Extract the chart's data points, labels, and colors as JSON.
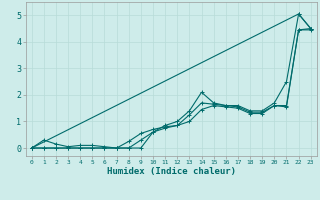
{
  "xlabel": "Humidex (Indice chaleur)",
  "background_color": "#ceecea",
  "grid_color": "#b8dcd8",
  "line_color": "#006b6b",
  "xlim": [
    -0.5,
    23.5
  ],
  "ylim": [
    -0.3,
    5.5
  ],
  "xticks": [
    0,
    1,
    2,
    3,
    4,
    5,
    6,
    7,
    8,
    9,
    10,
    11,
    12,
    13,
    14,
    15,
    16,
    17,
    18,
    19,
    20,
    21,
    22,
    23
  ],
  "yticks": [
    0,
    1,
    2,
    3,
    4,
    5
  ],
  "line1_x": [
    0,
    1,
    2,
    3,
    4,
    5,
    6,
    7,
    8,
    9,
    10,
    11,
    12,
    13,
    14,
    15,
    16,
    17,
    18,
    19,
    20,
    21,
    22,
    23
  ],
  "line1_y": [
    0.0,
    0.3,
    0.15,
    0.05,
    0.1,
    0.1,
    0.05,
    0.0,
    0.0,
    0.3,
    0.6,
    0.85,
    1.0,
    1.4,
    2.1,
    1.7,
    1.6,
    1.6,
    1.4,
    1.4,
    1.7,
    2.5,
    5.05,
    4.5
  ],
  "line2_x": [
    0,
    1,
    2,
    3,
    4,
    5,
    6,
    7,
    8,
    9,
    10,
    11,
    12,
    13,
    14,
    15,
    16,
    17,
    18,
    19,
    20,
    21,
    22,
    23
  ],
  "line2_y": [
    0.0,
    0.0,
    0.0,
    0.0,
    0.0,
    0.0,
    0.0,
    0.0,
    0.25,
    0.55,
    0.7,
    0.8,
    0.85,
    1.25,
    1.7,
    1.65,
    1.6,
    1.55,
    1.35,
    1.35,
    1.6,
    1.6,
    4.45,
    4.5
  ],
  "line3_x": [
    0,
    1,
    2,
    3,
    4,
    5,
    6,
    7,
    8,
    9,
    10,
    11,
    12,
    13,
    14,
    15,
    16,
    17,
    18,
    19,
    20,
    21,
    22,
    23
  ],
  "line3_y": [
    0.0,
    0.0,
    0.0,
    0.0,
    0.0,
    0.0,
    0.0,
    0.0,
    0.0,
    0.0,
    0.6,
    0.75,
    0.85,
    1.0,
    1.45,
    1.6,
    1.55,
    1.5,
    1.3,
    1.3,
    1.6,
    1.55,
    4.45,
    4.45
  ],
  "line4_x": [
    0,
    22,
    23
  ],
  "line4_y": [
    0.0,
    5.05,
    4.5
  ],
  "marker_size": 2.5,
  "line_width": 0.8
}
